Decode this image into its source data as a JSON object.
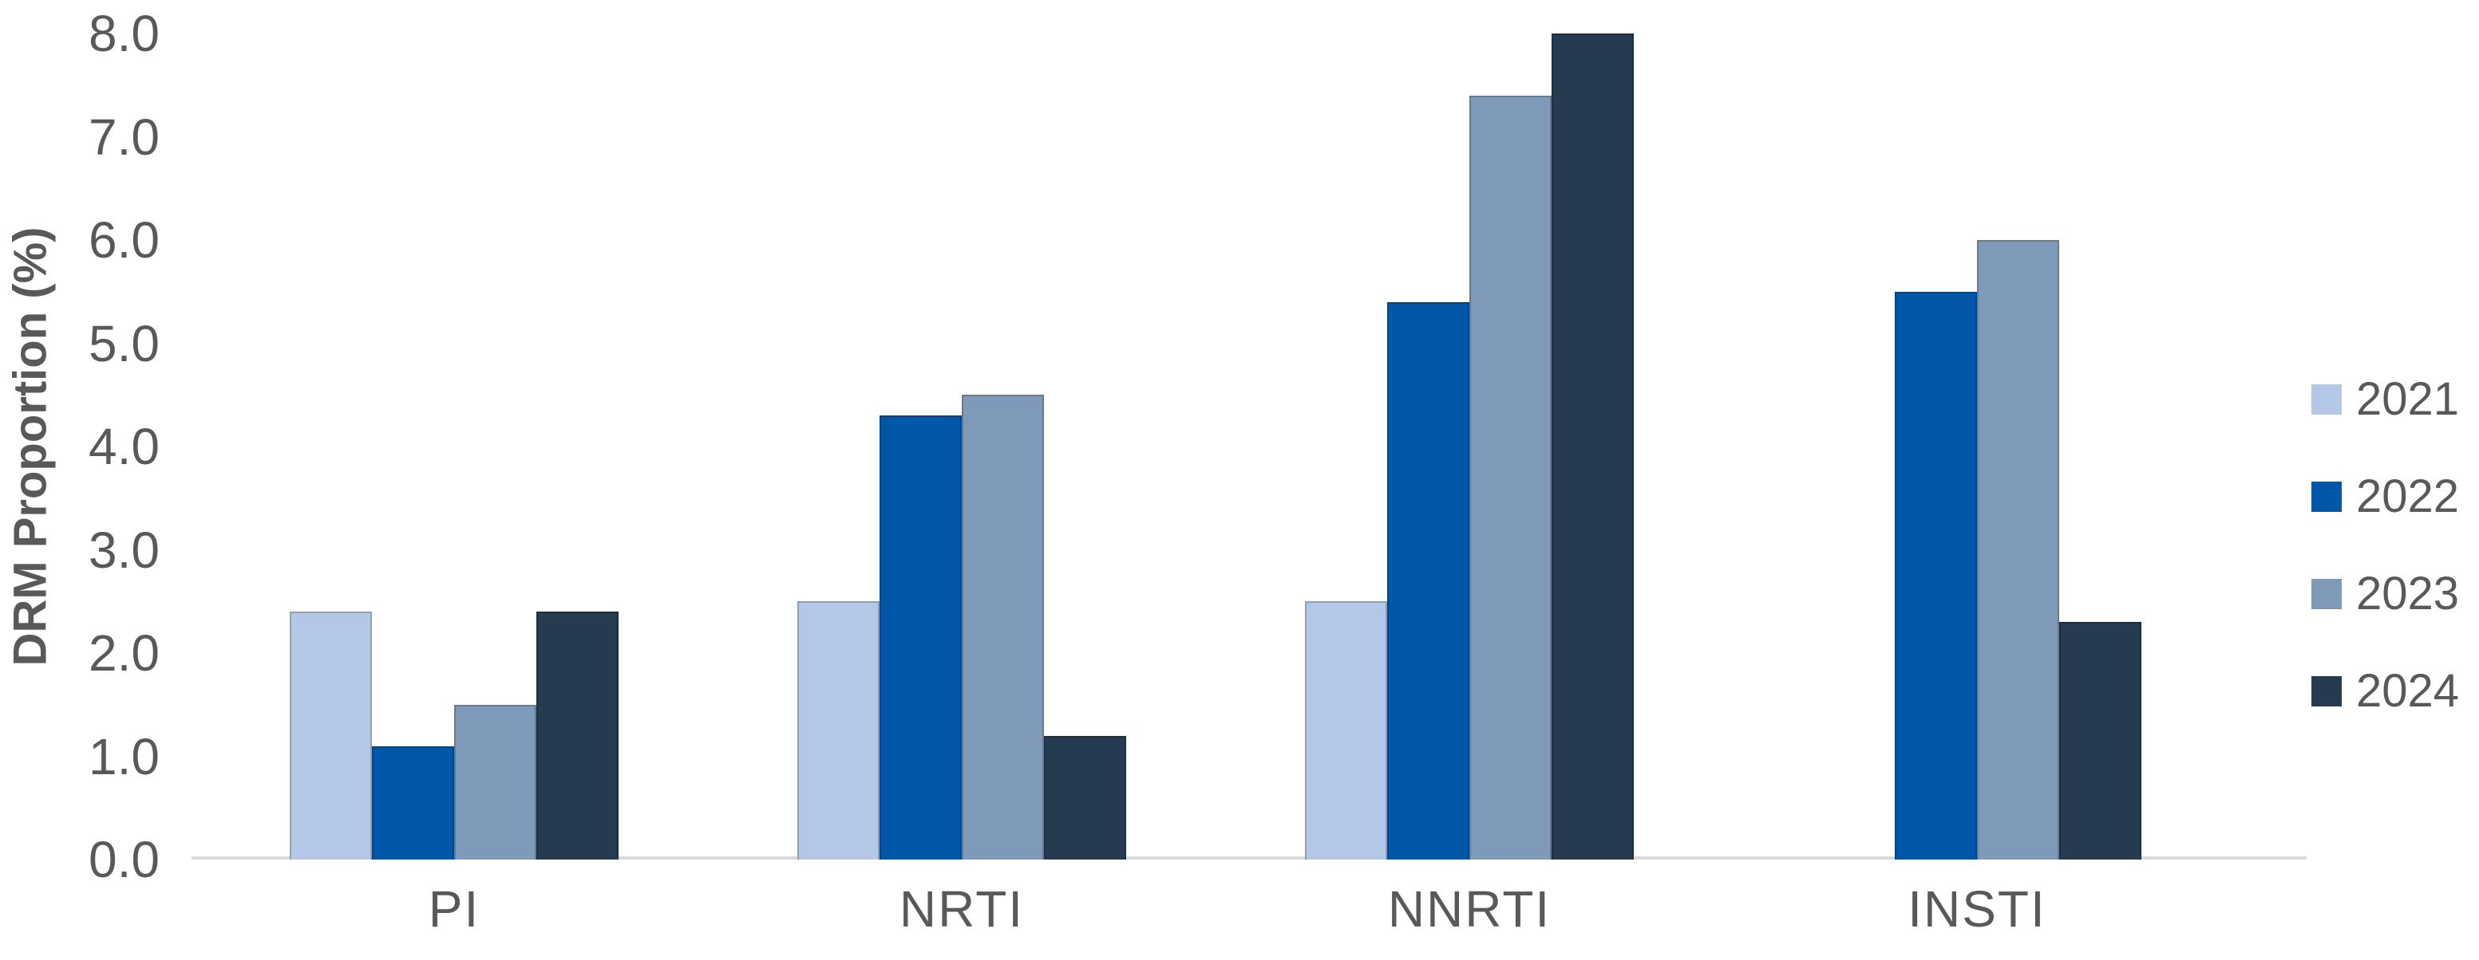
{
  "chart_data": {
    "type": "bar",
    "title": "",
    "ylabel": "DRM Proportion (%)",
    "xlabel": "",
    "categories": [
      "PI",
      "NRTI",
      "NNRTI",
      "INSTI"
    ],
    "series": [
      {
        "name": "2021",
        "color": "#b4c7e7",
        "values": [
          2.4,
          2.5,
          2.5,
          0
        ]
      },
      {
        "name": "2022",
        "color": "#0057a7",
        "values": [
          1.1,
          4.3,
          5.4,
          5.5
        ]
      },
      {
        "name": "2023",
        "color": "#7f9ab8",
        "values": [
          1.5,
          4.5,
          7.4,
          6.0
        ]
      },
      {
        "name": "2024",
        "color": "#263b50",
        "values": [
          2.4,
          1.2,
          8.0,
          2.3
        ]
      }
    ],
    "ylim": [
      0,
      8
    ],
    "ytick_step": 1.0,
    "ytick_labels": [
      "0.0",
      "1.0",
      "2.0",
      "3.0",
      "4.0",
      "5.0",
      "6.0",
      "7.0",
      "8.0"
    ],
    "grid": false,
    "legend_position": "right",
    "axis_line_color": "#d9d9d9",
    "text_color": "#595959"
  }
}
